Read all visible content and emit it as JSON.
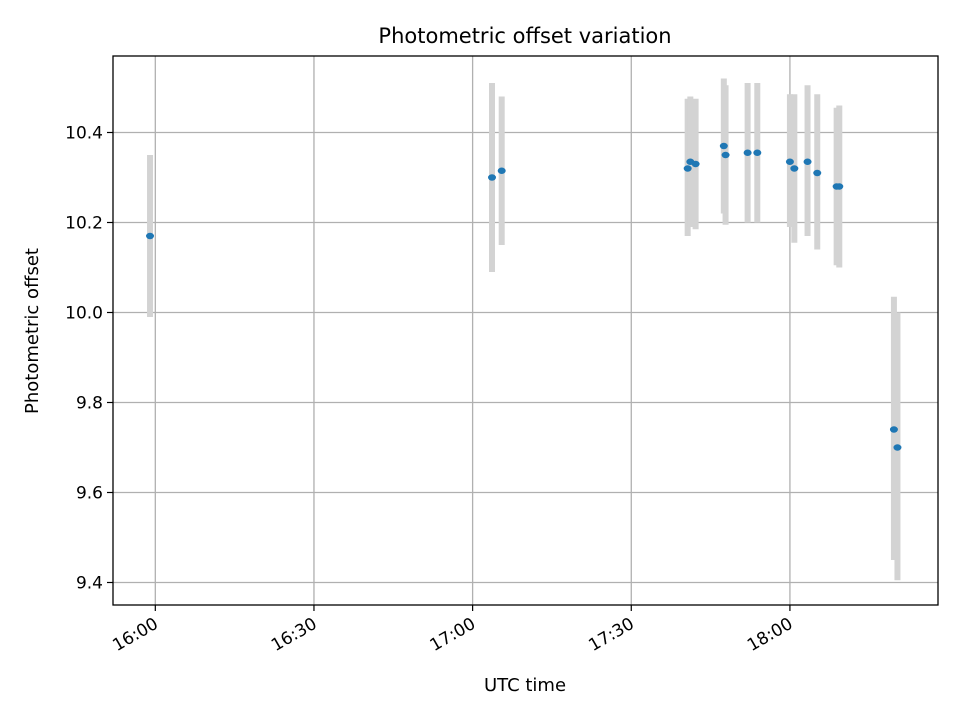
{
  "chart_data": {
    "type": "scatter",
    "title": "Photometric offset variation",
    "xlabel": "UTC time",
    "ylabel": "Photometric offset",
    "x_range": [
      "15:52",
      "18:28"
    ],
    "ylim": [
      9.35,
      10.57
    ],
    "x_ticks": [
      "16:00",
      "16:30",
      "17:00",
      "17:30",
      "18:00"
    ],
    "y_ticks": [
      9.4,
      9.6,
      9.8,
      10.0,
      10.2,
      10.4
    ],
    "grid": true,
    "error_bar_color": "#d3d3d3",
    "point_color": "#1f77b4",
    "points": [
      {
        "time": "15:59:00",
        "y": 10.17,
        "err_low": 9.99,
        "err_high": 10.35
      },
      {
        "time": "17:03:40",
        "y": 10.3,
        "err_low": 10.09,
        "err_high": 10.51
      },
      {
        "time": "17:05:30",
        "y": 10.315,
        "err_low": 10.15,
        "err_high": 10.48
      },
      {
        "time": "17:40:40",
        "y": 10.32,
        "err_low": 10.17,
        "err_high": 10.475
      },
      {
        "time": "17:41:10",
        "y": 10.335,
        "err_low": 10.19,
        "err_high": 10.48
      },
      {
        "time": "17:42:10",
        "y": 10.33,
        "err_low": 10.185,
        "err_high": 10.475
      },
      {
        "time": "17:47:30",
        "y": 10.37,
        "err_low": 10.22,
        "err_high": 10.52
      },
      {
        "time": "17:47:50",
        "y": 10.35,
        "err_low": 10.195,
        "err_high": 10.505
      },
      {
        "time": "17:52:00",
        "y": 10.355,
        "err_low": 10.2,
        "err_high": 10.51
      },
      {
        "time": "17:53:50",
        "y": 10.355,
        "err_low": 10.2,
        "err_high": 10.51
      },
      {
        "time": "18:00:00",
        "y": 10.335,
        "err_low": 10.19,
        "err_high": 10.485
      },
      {
        "time": "18:00:50",
        "y": 10.32,
        "err_low": 10.155,
        "err_high": 10.485
      },
      {
        "time": "18:03:20",
        "y": 10.335,
        "err_low": 10.17,
        "err_high": 10.505
      },
      {
        "time": "18:05:10",
        "y": 10.31,
        "err_low": 10.14,
        "err_high": 10.485
      },
      {
        "time": "18:08:50",
        "y": 10.28,
        "err_low": 10.105,
        "err_high": 10.455
      },
      {
        "time": "18:09:20",
        "y": 10.28,
        "err_low": 10.1,
        "err_high": 10.46
      },
      {
        "time": "18:19:40",
        "y": 9.74,
        "err_low": 9.45,
        "err_high": 10.035
      },
      {
        "time": "18:20:20",
        "y": 9.7,
        "err_low": 9.405,
        "err_high": 10.0
      }
    ]
  }
}
